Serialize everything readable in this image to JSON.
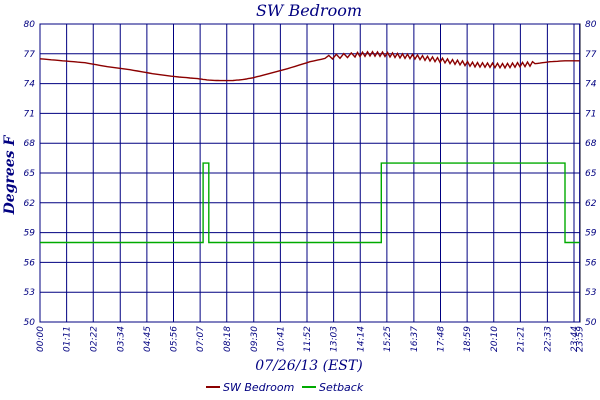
{
  "chart_data": {
    "type": "line",
    "title": "SW Bedroom",
    "ylabel": "Degrees F",
    "xlabel": "07/26/13 (EST)",
    "ylim": [
      50,
      80
    ],
    "yticks": [
      "50",
      "53",
      "56",
      "59",
      "62",
      "65",
      "68",
      "71",
      "74",
      "77",
      "80"
    ],
    "xlim": [
      0,
      1440
    ],
    "xtick_labels": [
      "00:00",
      "01:11",
      "02:22",
      "03:34",
      "04:45",
      "05:56",
      "07:07",
      "08:18",
      "09:30",
      "10:41",
      "11:52",
      "13:03",
      "14:14",
      "15:25",
      "16:37",
      "17:48",
      "18:59",
      "20:10",
      "21:21",
      "22:33",
      "23:44",
      "23:59"
    ],
    "xtick_minutes": [
      0,
      71,
      142,
      214,
      285,
      356,
      427,
      498,
      570,
      641,
      712,
      783,
      854,
      925,
      997,
      1068,
      1139,
      1210,
      1281,
      1353,
      1424,
      1439
    ],
    "grid": true,
    "legend": "bottom",
    "series": [
      {
        "name": "SW Bedroom",
        "color": "#8b0000",
        "x": [
          0,
          60,
          120,
          180,
          240,
          300,
          360,
          420,
          450,
          480,
          510,
          540,
          570,
          600,
          660,
          720,
          780,
          840,
          880,
          920,
          960,
          1000,
          1040,
          1080,
          1120,
          1160,
          1200,
          1240,
          1280,
          1320,
          1360,
          1400,
          1439
        ],
        "y": [
          76.5,
          76.3,
          76.1,
          75.7,
          75.4,
          75.0,
          74.7,
          74.5,
          74.35,
          74.3,
          74.3,
          74.4,
          74.6,
          74.9,
          75.5,
          76.2,
          76.7,
          76.9,
          77.0,
          76.95,
          76.8,
          76.7,
          76.5,
          76.3,
          76.1,
          75.9,
          75.85,
          75.8,
          75.9,
          76.0,
          76.2,
          76.3,
          76.3
        ]
      },
      {
        "name": "Setback",
        "color": "#00aa00",
        "x": [
          0,
          435,
          435,
          450,
          450,
          910,
          910,
          1400,
          1400,
          1439
        ],
        "y": [
          58,
          58,
          66,
          66,
          58,
          58,
          66,
          66,
          58,
          58
        ]
      }
    ]
  }
}
